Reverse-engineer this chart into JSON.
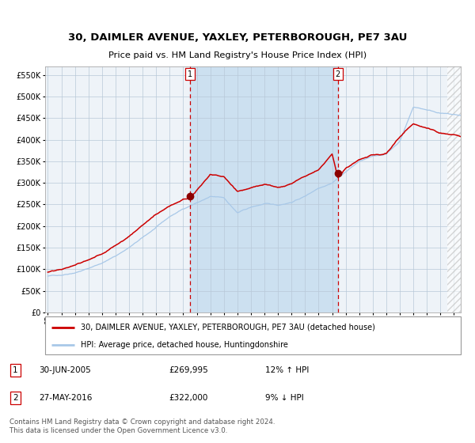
{
  "title": "30, DAIMLER AVENUE, YAXLEY, PETERBOROUGH, PE7 3AU",
  "subtitle": "Price paid vs. HM Land Registry's House Price Index (HPI)",
  "ylim": [
    0,
    570000
  ],
  "yticks": [
    0,
    50000,
    100000,
    150000,
    200000,
    250000,
    300000,
    350000,
    400000,
    450000,
    500000,
    550000
  ],
  "ytick_labels": [
    "£0",
    "£50K",
    "£100K",
    "£150K",
    "£200K",
    "£250K",
    "£300K",
    "£350K",
    "£400K",
    "£450K",
    "£500K",
    "£550K"
  ],
  "hpi_color": "#a8c8e8",
  "property_color": "#cc0000",
  "marker_color": "#8b0000",
  "plot_bg_color": "#eef3f8",
  "shaded_region_color": "#cce0f0",
  "grid_color": "#b8c8d8",
  "dashed_line_color": "#cc0000",
  "sale1_date_num": 2005.5,
  "sale1_price": 269995,
  "sale2_date_num": 2016.42,
  "sale2_price": 322000,
  "legend_line1": "30, DAIMLER AVENUE, YAXLEY, PETERBOROUGH, PE7 3AU (detached house)",
  "legend_line2": "HPI: Average price, detached house, Huntingdonshire",
  "footnote": "Contains HM Land Registry data © Crown copyright and database right 2024.\nThis data is licensed under the Open Government Licence v3.0.",
  "hatch_region_start": 2024.5,
  "xmin": 1994.8,
  "xmax": 2025.5,
  "xtick_years": [
    1995,
    1996,
    1997,
    1998,
    1999,
    2000,
    2001,
    2002,
    2003,
    2004,
    2005,
    2006,
    2007,
    2008,
    2009,
    2010,
    2011,
    2012,
    2013,
    2014,
    2015,
    2016,
    2017,
    2018,
    2019,
    2020,
    2021,
    2022,
    2023,
    2024,
    2025
  ]
}
